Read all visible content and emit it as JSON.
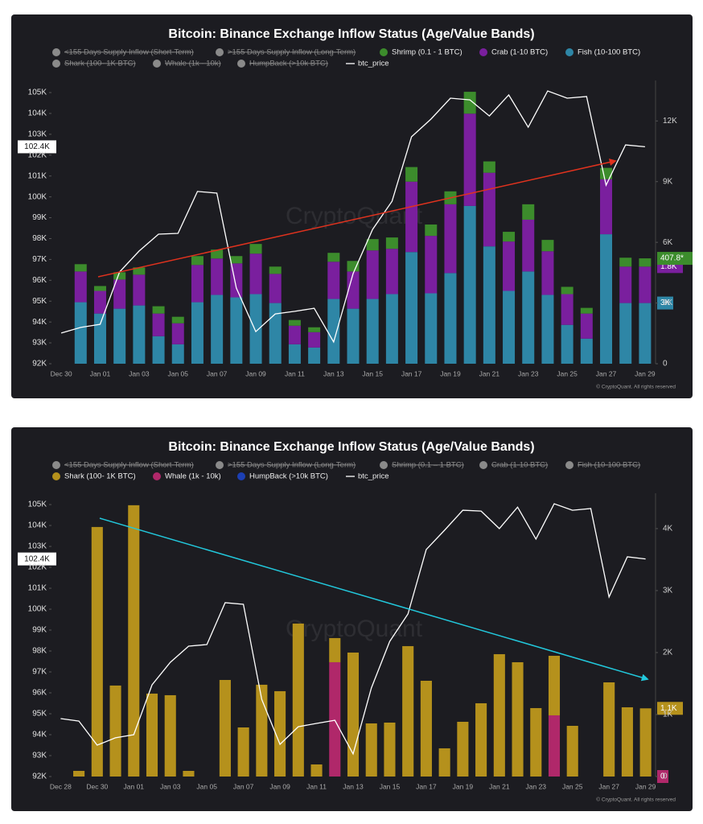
{
  "chart_data": [
    {
      "type": "bar",
      "title": "Bitcoin: Binance Exchange Inflow Status (Age/Value Bands)",
      "watermark": "CryptoQuant",
      "copyright": "© CryptoQuant. All rights reserved",
      "categories": [
        "Dec 30",
        null,
        "Jan 01",
        null,
        "Jan 03",
        null,
        "Jan 05",
        null,
        "Jan 07",
        null,
        "Jan 09",
        null,
        "Jan 11",
        null,
        "Jan 13",
        null,
        "Jan 15",
        null,
        "Jan 17",
        null,
        "Jan 19",
        null,
        "Jan 21",
        null,
        "Jan 23",
        null,
        "Jan 25",
        null,
        "Jan 27",
        null,
        "Jan 29"
      ],
      "ylim": [
        92000,
        105580
      ],
      "yticks": [
        {
          "value": 92000,
          "label": "92K"
        },
        {
          "value": 93000,
          "label": "93K"
        },
        {
          "value": 94000,
          "label": "94K"
        },
        {
          "value": 95000,
          "label": "95K"
        },
        {
          "value": 96000,
          "label": "96K"
        },
        {
          "value": 97000,
          "label": "97K"
        },
        {
          "value": 98000,
          "label": "98K"
        },
        {
          "value": 99000,
          "label": "99K"
        },
        {
          "value": 100000,
          "label": "100K"
        },
        {
          "value": 101000,
          "label": "101K"
        },
        {
          "value": 102000,
          "label": "102K"
        },
        {
          "value": 103000,
          "label": "103K"
        },
        {
          "value": 104000,
          "label": "104K"
        },
        {
          "value": 105000,
          "label": "105K"
        }
      ],
      "y2lim": [
        0,
        14000
      ],
      "y2ticks": [
        0,
        {
          "value": 3000,
          "label": "3K"
        },
        {
          "value": 6000,
          "label": "6K"
        },
        {
          "value": 9000,
          "label": "9K"
        },
        {
          "value": 12000,
          "label": "12K"
        }
      ],
      "grid": false,
      "series": [
        {
          "name": "<155 Days Supply Inflow (Short-Term)",
          "hidden": true
        },
        {
          "name": ">155 Days Supply Inflow (Long-Term)",
          "hidden": true
        },
        {
          "name": "Shrimp (0.1 - 1 BTC)",
          "color": "#3c8c2c",
          "axis": "y2",
          "last_label": "407.8*",
          "values": [
            null,
            360,
            240,
            360,
            360,
            360,
            320,
            440,
            440,
            360,
            480,
            360,
            280,
            240,
            440,
            520,
            560,
            560,
            720,
            560,
            640,
            1080,
            560,
            480,
            760,
            560,
            360,
            280,
            560,
            440,
            407.8
          ]
        },
        {
          "name": "Crab (1-10 BTC)",
          "color": "#7a1f9e",
          "axis": "y2",
          "last_label": "1.8K",
          "values": [
            null,
            1520,
            1120,
            1440,
            1520,
            1120,
            1040,
            1840,
            1800,
            1680,
            2000,
            1440,
            920,
            760,
            1840,
            1840,
            2400,
            2240,
            3480,
            2840,
            3400,
            4560,
            3640,
            2440,
            2560,
            2160,
            1520,
            1240,
            2720,
            1800,
            1800
          ]
        },
        {
          "name": "Fish (10-100 BTC)",
          "color": "#2e86a6",
          "axis": "y2",
          "last_label": "3K",
          "values": [
            null,
            3040,
            2480,
            2720,
            2880,
            1360,
            960,
            3040,
            3400,
            3280,
            3440,
            3000,
            960,
            800,
            3200,
            2720,
            3200,
            3440,
            5520,
            3480,
            4480,
            7800,
            5800,
            3600,
            4560,
            3400,
            1920,
            1240,
            6400,
            3000,
            3000
          ]
        },
        {
          "name": "Shark (100- 1K BTC)",
          "hidden": true
        },
        {
          "name": "Whale (1k - 10k)",
          "hidden": true
        },
        {
          "name": "HumpBack (>10k BTC)",
          "hidden": true
        },
        {
          "name": "btc_price",
          "type": "line",
          "color": "#ffffff",
          "axis": "y",
          "last_label": "102.4K",
          "values": [
            93470,
            93740,
            93890,
            96400,
            97400,
            98210,
            98250,
            100260,
            100180,
            95630,
            93540,
            94390,
            94510,
            94660,
            93040,
            96320,
            98440,
            99790,
            102880,
            103730,
            104730,
            104650,
            103880,
            104890,
            103340,
            105080,
            104730,
            104810,
            100560,
            102490,
            102400
          ]
        }
      ]
    },
    {
      "type": "bar",
      "title": "Bitcoin: Binance Exchange Inflow Status (Age/Value Bands)",
      "watermark": "CryptoQuant",
      "copyright": "© CryptoQuant. All rights reserved",
      "categories": [
        "Dec 28",
        null,
        "Dec 30",
        null,
        "Jan 01",
        null,
        "Jan 03",
        null,
        "Jan 05",
        null,
        "Jan 07",
        null,
        "Jan 09",
        null,
        "Jan 11",
        null,
        "Jan 13",
        null,
        "Jan 15",
        null,
        "Jan 17",
        null,
        "Jan 19",
        null,
        "Jan 21",
        null,
        "Jan 23",
        null,
        "Jan 25",
        null,
        "Jan 27",
        null,
        "Jan 29"
      ],
      "ylim": [
        92000,
        105540
      ],
      "yticks": [
        {
          "value": 92000,
          "label": "92K"
        },
        {
          "value": 93000,
          "label": "93K"
        },
        {
          "value": 94000,
          "label": "94K"
        },
        {
          "value": 95000,
          "label": "95K"
        },
        {
          "value": 96000,
          "label": "96K"
        },
        {
          "value": 97000,
          "label": "97K"
        },
        {
          "value": 98000,
          "label": "98K"
        },
        {
          "value": 99000,
          "label": "99K"
        },
        {
          "value": 100000,
          "label": "100K"
        },
        {
          "value": 101000,
          "label": "101K"
        },
        {
          "value": 102000,
          "label": "102K"
        },
        {
          "value": 103000,
          "label": "103K"
        },
        {
          "value": 104000,
          "label": "104K"
        },
        {
          "value": 105000,
          "label": "105K"
        }
      ],
      "y2lim": [
        0,
        4570
      ],
      "y2ticks": [
        0,
        {
          "value": 1000,
          "label": "1K"
        },
        {
          "value": 2000,
          "label": "2K"
        },
        {
          "value": 3000,
          "label": "3K"
        },
        {
          "value": 4000,
          "label": "4K"
        }
      ],
      "grid": false,
      "series": [
        {
          "name": "<155 Days Supply Inflow (Short-Term)",
          "hidden": true
        },
        {
          "name": ">155 Days Supply Inflow (Long-Term)",
          "hidden": true
        },
        {
          "name": "Shrimp (0.1 – 1 BTC)",
          "hidden": true
        },
        {
          "name": "Crab (1-10 BTC)",
          "hidden": true
        },
        {
          "name": "Fish (10-100 BTC)",
          "hidden": true
        },
        {
          "name": "Shark (100- 1K BTC)",
          "color": "#b5911c",
          "axis": "y2",
          "last_label": "1.1K",
          "values": [
            0,
            91,
            4026,
            1468,
            4377,
            1338,
            1312,
            91,
            0,
            1558,
            792,
            1481,
            1377,
            2468,
            195,
            390,
            2000,
            857,
            870,
            2104,
            1545,
            455,
            883,
            1182,
            1974,
            1844,
            1104,
            961,
            818,
            0,
            1519,
            1117,
            1100
          ]
        },
        {
          "name": "Whale (1k - 10k)",
          "color": "#b0286a",
          "axis": "y2",
          "last_label": "0",
          "values": [
            0,
            0,
            0,
            0,
            0,
            0,
            0,
            0,
            0,
            0,
            0,
            0,
            0,
            0,
            0,
            1844,
            0,
            0,
            0,
            0,
            0,
            0,
            0,
            0,
            0,
            0,
            0,
            987,
            0,
            0,
            0,
            0,
            0
          ]
        },
        {
          "name": "HumpBack (>10k BTC)",
          "color": "#1c3fb4",
          "axis": "y2",
          "values": [
            0,
            0,
            0,
            0,
            0,
            0,
            0,
            0,
            0,
            0,
            0,
            0,
            0,
            0,
            0,
            0,
            0,
            0,
            0,
            0,
            0,
            0,
            0,
            0,
            0,
            0,
            0,
            0,
            0,
            0,
            0,
            0,
            0
          ]
        },
        {
          "name": "btc_price",
          "type": "line",
          "color": "#ffffff",
          "axis": "y",
          "last_label": "102.4K",
          "values": [
            94770,
            94650,
            93500,
            93850,
            94000,
            96380,
            97460,
            98230,
            98310,
            100310,
            100230,
            95690,
            93540,
            94380,
            94540,
            94690,
            93080,
            96230,
            98460,
            99770,
            102850,
            103770,
            104730,
            104690,
            103850,
            104880,
            103350,
            105040,
            104730,
            104810,
            100580,
            102500,
            102400
          ]
        }
      ]
    }
  ]
}
